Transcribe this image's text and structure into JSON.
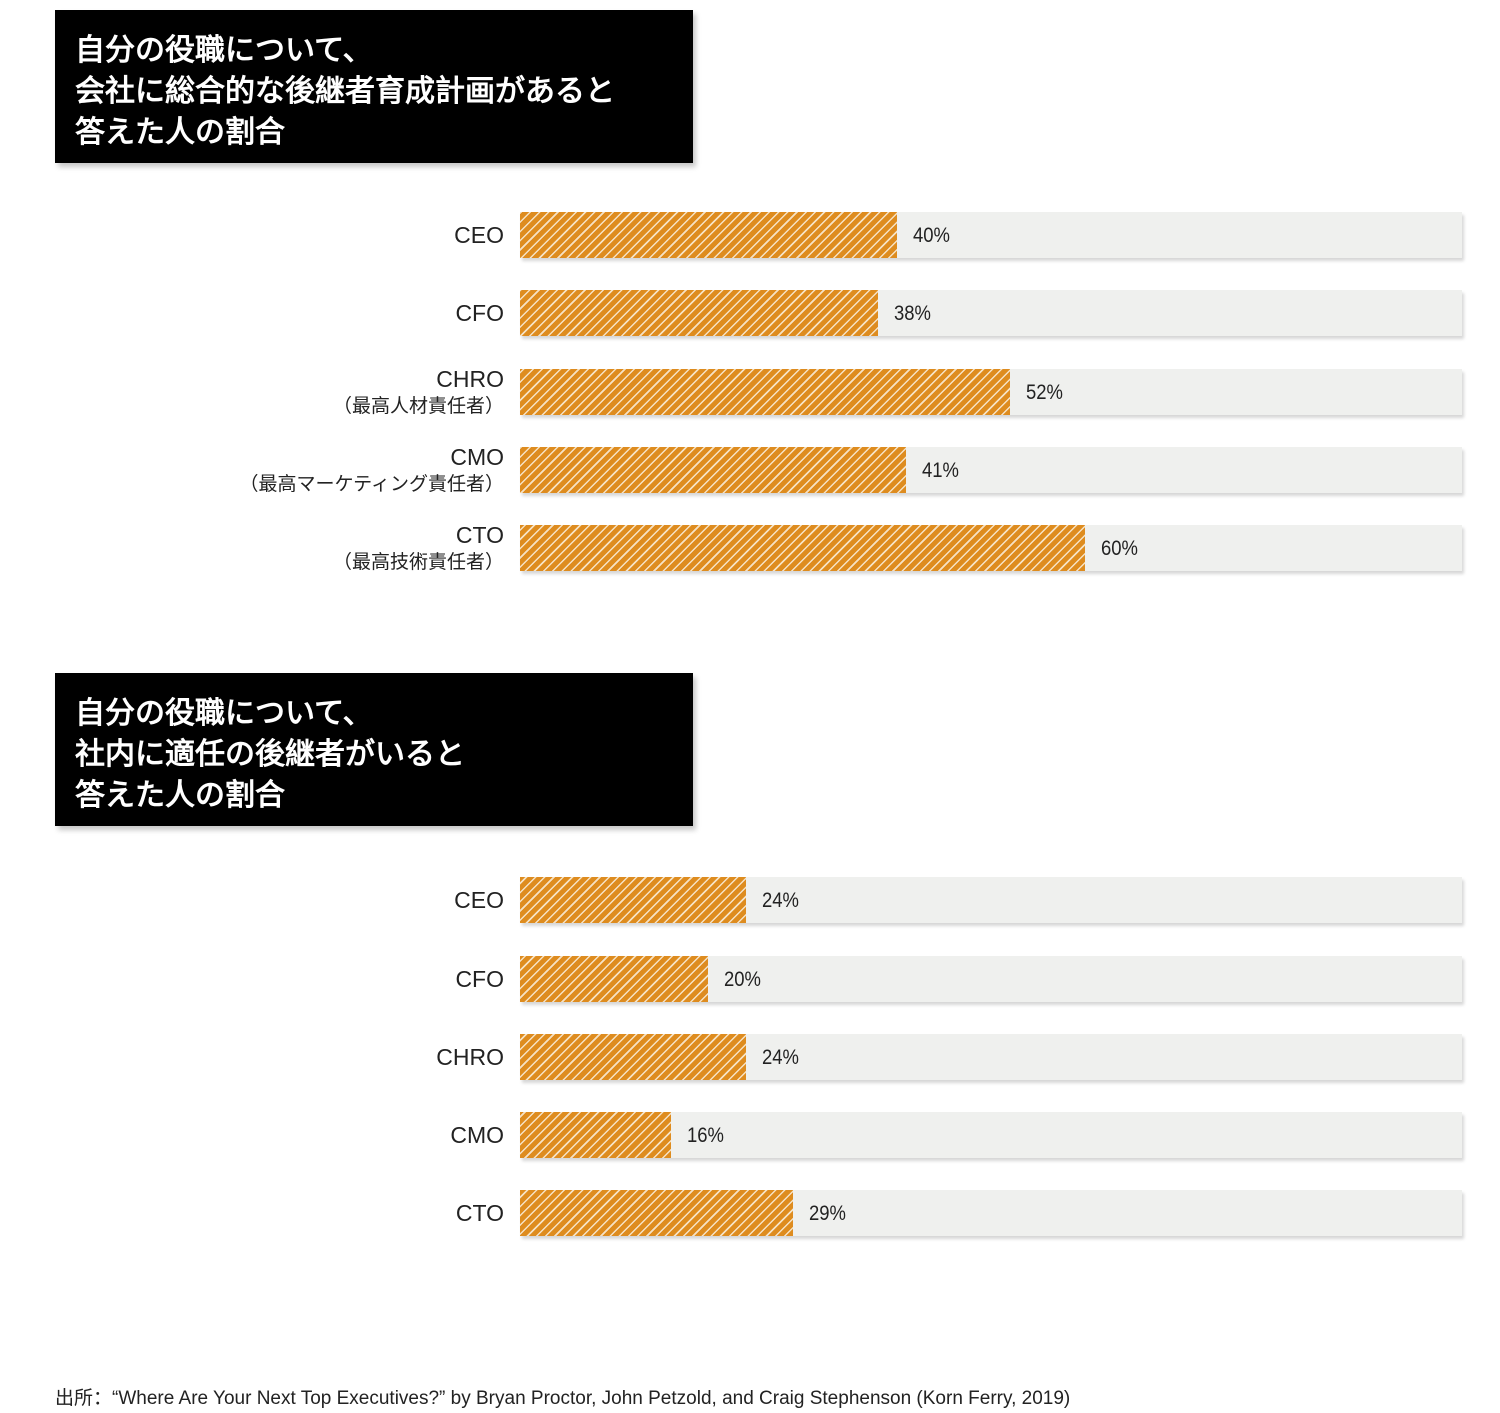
{
  "colors": {
    "bar_fill": "#de8c1f",
    "bar_track": "#eff0ee",
    "title_bg": "#000000",
    "title_text": "#ffffff"
  },
  "chart_data": [
    {
      "type": "bar",
      "orientation": "horizontal",
      "title_lines": [
        "自分の役職について、",
        "会社に総合的な後継者育成計画があると",
        "答えた人の割合"
      ],
      "categories": [
        "CEO",
        "CFO",
        "CHRO",
        "CMO",
        "CTO"
      ],
      "category_sublabels": [
        "",
        "",
        "（最高人材責任者）",
        "（最高マーケティング責任者）",
        "（最高技術責任者）"
      ],
      "values": [
        40,
        38,
        52,
        41,
        60
      ],
      "value_labels": [
        "40%",
        "38%",
        "52%",
        "41%",
        "60%"
      ],
      "xlim": [
        0,
        100
      ],
      "unit": "%",
      "grid": false
    },
    {
      "type": "bar",
      "orientation": "horizontal",
      "title_lines": [
        "自分の役職について、",
        "社内に適任の後継者がいると",
        "答えた人の割合"
      ],
      "categories": [
        "CEO",
        "CFO",
        "CHRO",
        "CMO",
        "CTO"
      ],
      "category_sublabels": [
        "",
        "",
        "",
        "",
        ""
      ],
      "values": [
        24,
        20,
        24,
        16,
        29
      ],
      "value_labels": [
        "24%",
        "20%",
        "24%",
        "16%",
        "29%"
      ],
      "xlim": [
        0,
        100
      ],
      "unit": "%",
      "grid": false
    }
  ],
  "source": "出所：“Where Are Your Next Top Executives?” by Bryan Proctor, John Petzold, and Craig Stephenson (Korn Ferry, 2019)"
}
